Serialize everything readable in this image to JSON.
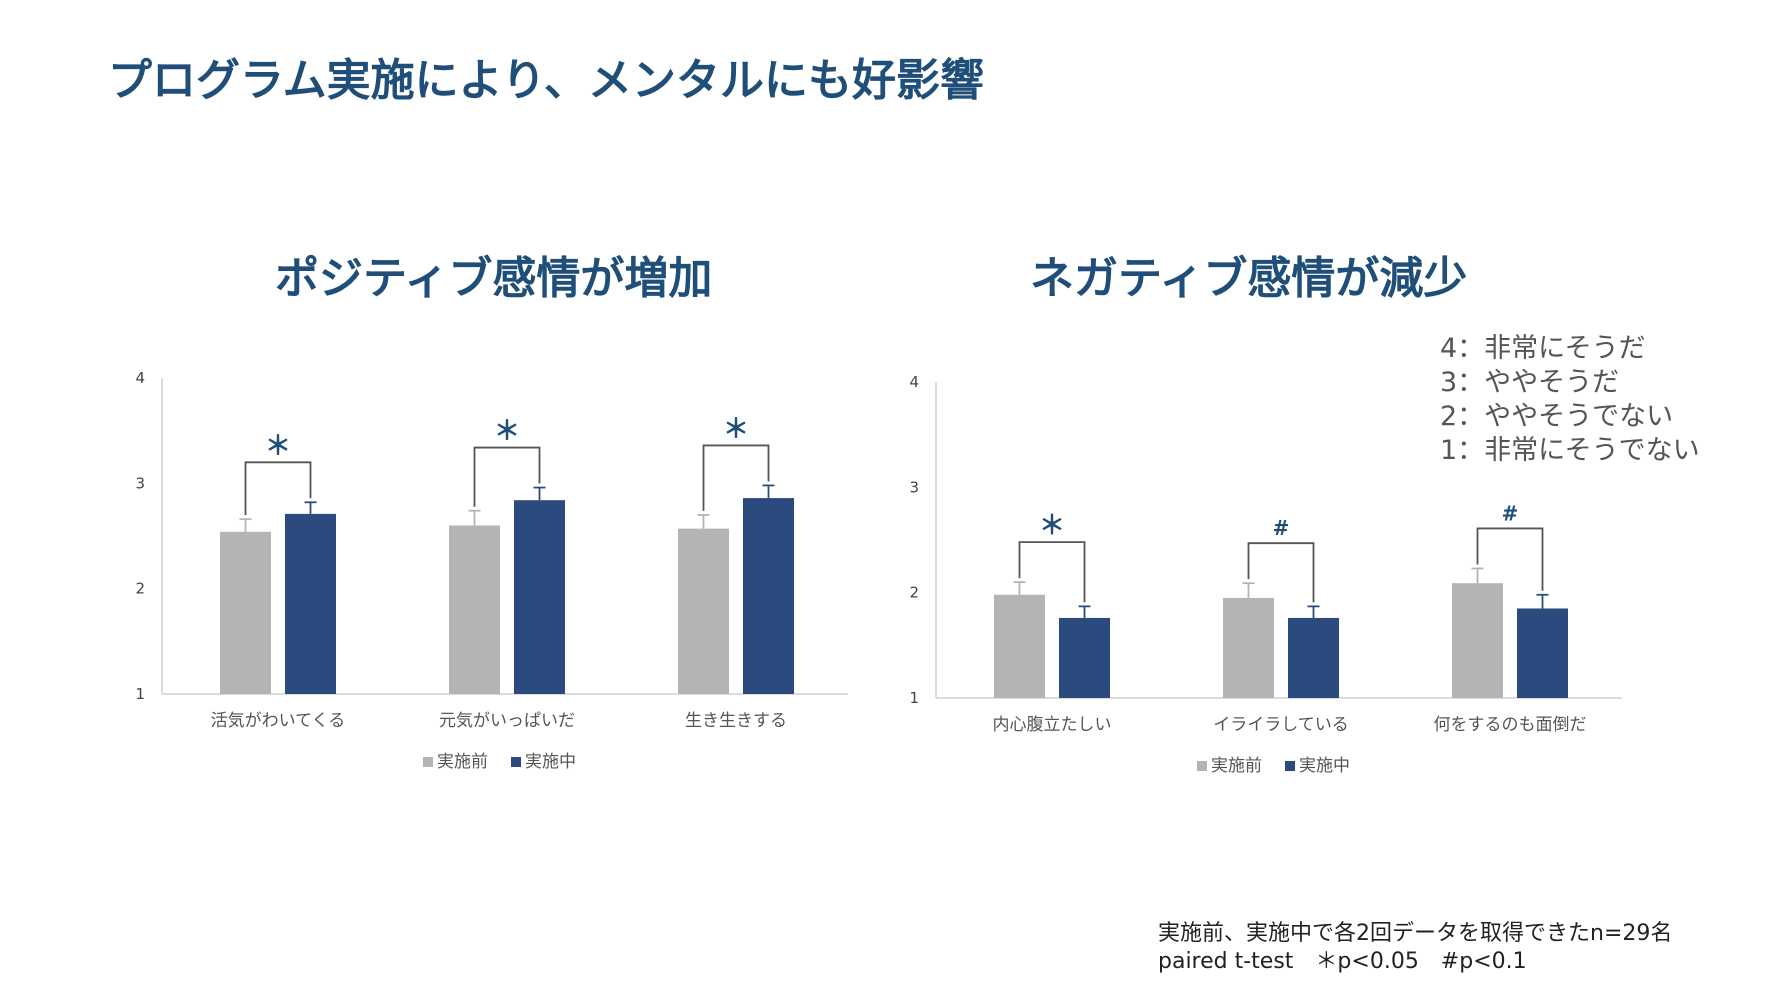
{
  "page_title": "プログラム実施により、メンタルにも好影響",
  "scale_legend": [
    "4：非常にそうだ",
    "3：ややそうだ",
    "2：ややそうでない",
    "1：非常にそうでない"
  ],
  "footnote": {
    "line1": "実施前、実施中で各2回データを取得できたn=29名",
    "line2": "paired t-test　＊p<0.05　#p<0.1"
  },
  "colors": {
    "before": "#b4b4b4",
    "during": "#2b4b7e",
    "title": "#1f4e79",
    "marker": "#1f4e79"
  },
  "chart_data": [
    {
      "type": "bar",
      "title": "ポジティブ感情が増加",
      "categories": [
        "活気がわいてくる",
        "元気がいっぱいだ",
        "生き生きする"
      ],
      "series": [
        {
          "name": "実施前",
          "values": [
            2.54,
            2.6,
            2.57
          ],
          "errors": [
            0.12,
            0.14,
            0.13
          ]
        },
        {
          "name": "実施中",
          "values": [
            2.71,
            2.84,
            2.86
          ],
          "errors": [
            0.11,
            0.12,
            0.12
          ]
        }
      ],
      "significance": [
        "＊",
        "＊",
        "＊"
      ],
      "ylim": [
        1,
        4
      ],
      "yticks": [
        "1",
        "2",
        "3",
        "4"
      ],
      "legend_position": "bottom"
    },
    {
      "type": "bar",
      "title": "ネガティブ感情が減少",
      "categories": [
        "内心腹立たしい",
        "イライラしている",
        "何をするのも面倒だ"
      ],
      "series": [
        {
          "name": "実施前",
          "values": [
            1.98,
            1.95,
            2.09
          ],
          "errors": [
            0.12,
            0.14,
            0.14
          ]
        },
        {
          "name": "実施中",
          "values": [
            1.76,
            1.76,
            1.85
          ],
          "errors": [
            0.11,
            0.11,
            0.13
          ]
        }
      ],
      "significance": [
        "＊",
        "#",
        "#"
      ],
      "ylim": [
        1,
        4
      ],
      "yticks": [
        "1",
        "2",
        "3",
        "4"
      ],
      "legend_position": "bottom"
    }
  ]
}
